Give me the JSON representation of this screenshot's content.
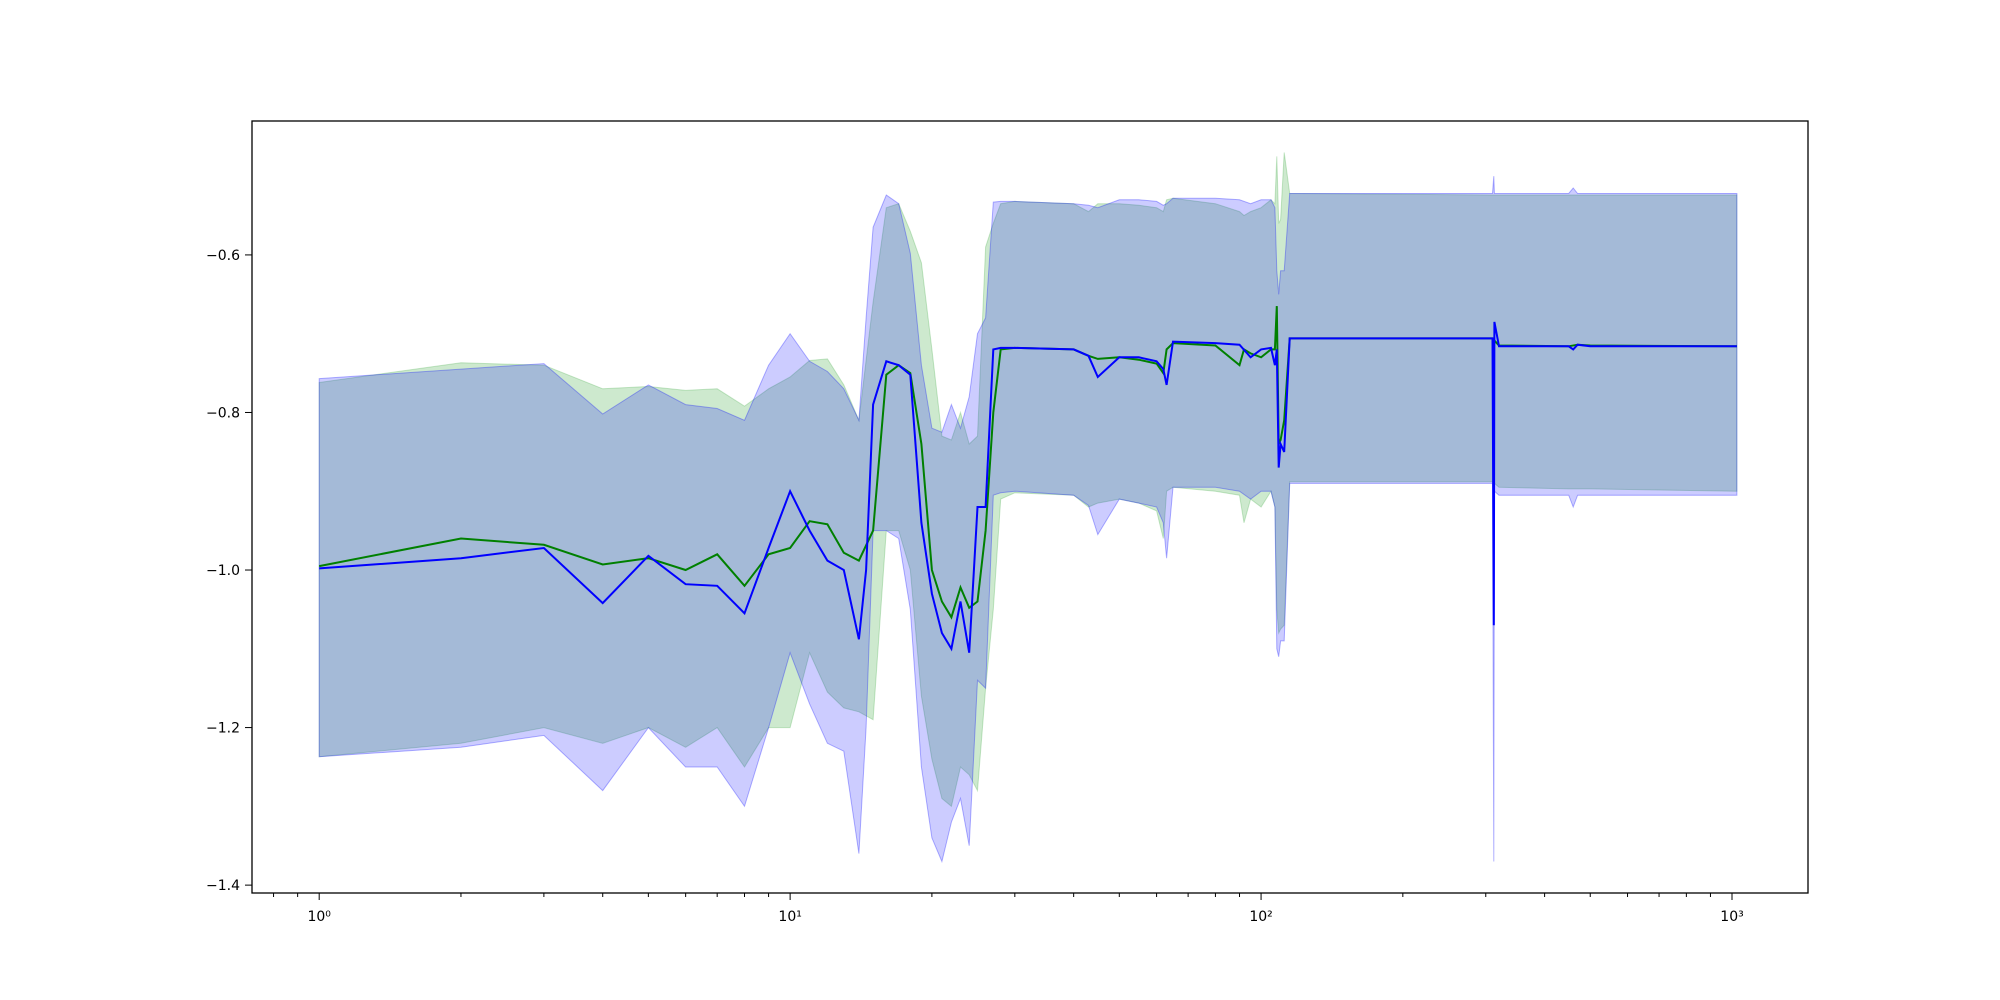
{
  "chart_data": {
    "type": "line",
    "title": "",
    "xlabel": "",
    "ylabel": "",
    "xscale": "log",
    "xlim": [
      0.72,
      1450
    ],
    "ylim": [
      -1.41,
      -0.43
    ],
    "grid": false,
    "legend": "none",
    "x_ticks": [
      {
        "value": 1,
        "label": "10⁰"
      },
      {
        "value": 10,
        "label": "10¹"
      },
      {
        "value": 100,
        "label": "10²"
      },
      {
        "value": 1000,
        "label": "10³"
      }
    ],
    "y_ticks": [
      {
        "value": -0.6,
        "label": "−0.6"
      },
      {
        "value": -0.8,
        "label": "−0.8"
      },
      {
        "value": -1.0,
        "label": "−1.0"
      },
      {
        "value": -1.2,
        "label": "−1.2"
      },
      {
        "value": -1.4,
        "label": "−1.4"
      }
    ],
    "series": [
      {
        "color": "#008000",
        "band_color": "#4caf50",
        "band_opacity": 0.28,
        "x": [
          1,
          2,
          3,
          4,
          5,
          6,
          7,
          8,
          9,
          10,
          11,
          12,
          13,
          14,
          15,
          16,
          17,
          18,
          19,
          20,
          21,
          22,
          23,
          24,
          25,
          26,
          27,
          28,
          30,
          40,
          43,
          45,
          50,
          55,
          60,
          62,
          63,
          65,
          80,
          90,
          92,
          95,
          100,
          105,
          107,
          108,
          109,
          110,
          112,
          115,
          310,
          320,
          450,
          470,
          500,
          1024
        ],
        "mean": [
          -0.995,
          -0.96,
          -0.968,
          -0.993,
          -0.985,
          -1.0,
          -0.98,
          -1.02,
          -0.98,
          -0.972,
          -0.938,
          -0.942,
          -0.978,
          -0.988,
          -0.95,
          -0.752,
          -0.74,
          -0.75,
          -0.84,
          -1.0,
          -1.04,
          -1.06,
          -1.022,
          -1.048,
          -1.04,
          -0.95,
          -0.8,
          -0.72,
          -0.718,
          -0.72,
          -0.728,
          -0.732,
          -0.73,
          -0.733,
          -0.738,
          -0.75,
          -0.72,
          -0.712,
          -0.715,
          -0.74,
          -0.72,
          -0.725,
          -0.73,
          -0.72,
          -0.72,
          -0.665,
          -0.84,
          -0.835,
          -0.81,
          -0.706,
          -0.706,
          -0.715,
          -0.716,
          -0.714,
          -0.715,
          -0.716
        ],
        "lower": [
          -1.237,
          -1.22,
          -1.2,
          -1.22,
          -1.2,
          -1.225,
          -1.2,
          -1.25,
          -1.2,
          -1.2,
          -1.105,
          -1.155,
          -1.175,
          -1.18,
          -1.19,
          -0.95,
          -0.95,
          -1.0,
          -1.16,
          -1.24,
          -1.29,
          -1.3,
          -1.25,
          -1.26,
          -1.28,
          -1.15,
          -1.05,
          -0.91,
          -0.902,
          -0.905,
          -0.92,
          -0.915,
          -0.91,
          -0.915,
          -0.925,
          -0.96,
          -0.9,
          -0.895,
          -0.9,
          -0.905,
          -0.94,
          -0.91,
          -0.92,
          -0.9,
          -0.92,
          -1.05,
          -1.08,
          -1.075,
          -1.07,
          -0.888,
          -0.888,
          -0.895,
          -0.897,
          -0.897,
          -0.897,
          -0.9
        ],
        "upper": [
          -0.762,
          -0.737,
          -0.74,
          -0.77,
          -0.767,
          -0.772,
          -0.77,
          -0.792,
          -0.77,
          -0.755,
          -0.734,
          -0.732,
          -0.765,
          -0.81,
          -0.66,
          -0.54,
          -0.535,
          -0.57,
          -0.61,
          -0.72,
          -0.83,
          -0.835,
          -0.8,
          -0.84,
          -0.83,
          -0.59,
          -0.56,
          -0.535,
          -0.532,
          -0.535,
          -0.545,
          -0.535,
          -0.535,
          -0.537,
          -0.54,
          -0.545,
          -0.53,
          -0.528,
          -0.535,
          -0.545,
          -0.55,
          -0.545,
          -0.54,
          -0.53,
          -0.535,
          -0.475,
          -0.56,
          -0.555,
          -0.47,
          -0.522,
          -0.524,
          -0.524,
          -0.524,
          -0.524,
          -0.524,
          -0.524
        ]
      },
      {
        "color": "#0000ff",
        "band_color": "#0000ff",
        "band_opacity": 0.2,
        "x": [
          1,
          2,
          3,
          4,
          5,
          6,
          7,
          8,
          9,
          10,
          11,
          12,
          13,
          14,
          14.5,
          15,
          16,
          17,
          18,
          19,
          20,
          21,
          22,
          23,
          24,
          25,
          26,
          27,
          28,
          30,
          40,
          43,
          45,
          50,
          55,
          60,
          62,
          63,
          65,
          80,
          90,
          95,
          100,
          105,
          107,
          108,
          109,
          110,
          112,
          115,
          310,
          312,
          313,
          320,
          450,
          460,
          470,
          500,
          1024
        ],
        "mean": [
          -0.998,
          -0.985,
          -0.972,
          -1.042,
          -0.982,
          -1.018,
          -1.02,
          -1.055,
          -0.972,
          -0.9,
          -0.95,
          -0.988,
          -1.0,
          -1.088,
          -1.0,
          -0.79,
          -0.735,
          -0.74,
          -0.752,
          -0.94,
          -1.03,
          -1.08,
          -1.1,
          -1.04,
          -1.105,
          -0.92,
          -0.92,
          -0.72,
          -0.718,
          -0.718,
          -0.72,
          -0.728,
          -0.755,
          -0.73,
          -0.73,
          -0.735,
          -0.745,
          -0.765,
          -0.71,
          -0.712,
          -0.714,
          -0.73,
          -0.72,
          -0.718,
          -0.74,
          -0.72,
          -0.87,
          -0.84,
          -0.85,
          -0.706,
          -0.706,
          -1.07,
          -0.685,
          -0.716,
          -0.716,
          -0.72,
          -0.714,
          -0.716,
          -0.716
        ],
        "lower": [
          -1.237,
          -1.225,
          -1.21,
          -1.28,
          -1.2,
          -1.25,
          -1.25,
          -1.3,
          -1.2,
          -1.105,
          -1.17,
          -1.22,
          -1.23,
          -1.36,
          -1.2,
          -0.95,
          -0.95,
          -0.96,
          -1.05,
          -1.25,
          -1.34,
          -1.37,
          -1.32,
          -1.29,
          -1.35,
          -1.14,
          -1.15,
          -0.905,
          -0.902,
          -0.9,
          -0.905,
          -0.918,
          -0.955,
          -0.91,
          -0.915,
          -0.92,
          -0.94,
          -0.985,
          -0.895,
          -0.895,
          -0.9,
          -0.91,
          -0.9,
          -0.9,
          -0.92,
          -1.1,
          -1.11,
          -1.09,
          -1.09,
          -0.89,
          -0.89,
          -1.37,
          -0.9,
          -0.905,
          -0.905,
          -0.92,
          -0.905,
          -0.905,
          -0.905
        ],
        "upper": [
          -0.757,
          -0.745,
          -0.738,
          -0.802,
          -0.765,
          -0.79,
          -0.795,
          -0.81,
          -0.74,
          -0.7,
          -0.735,
          -0.748,
          -0.77,
          -0.81,
          -0.68,
          -0.565,
          -0.524,
          -0.535,
          -0.598,
          -0.74,
          -0.82,
          -0.825,
          -0.79,
          -0.82,
          -0.78,
          -0.7,
          -0.68,
          -0.533,
          -0.532,
          -0.532,
          -0.535,
          -0.537,
          -0.54,
          -0.53,
          -0.53,
          -0.532,
          -0.537,
          -0.535,
          -0.528,
          -0.528,
          -0.53,
          -0.535,
          -0.53,
          -0.53,
          -0.54,
          -0.62,
          -0.65,
          -0.62,
          -0.62,
          -0.522,
          -0.522,
          -0.5,
          -0.522,
          -0.522,
          -0.522,
          -0.515,
          -0.522,
          -0.522,
          -0.522
        ]
      }
    ]
  }
}
